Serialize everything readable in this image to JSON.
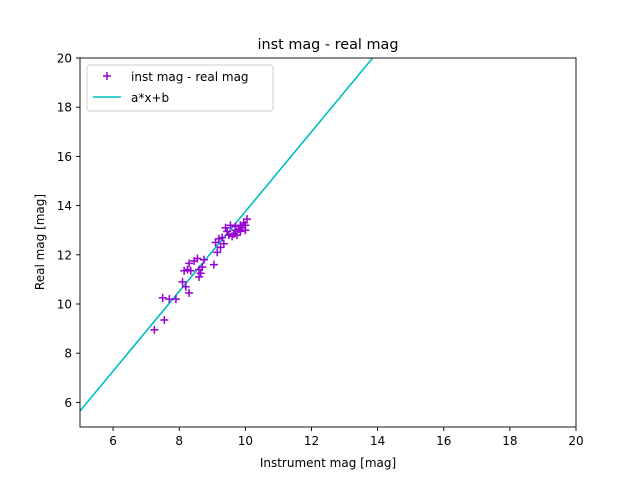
{
  "chart_data": {
    "type": "scatter",
    "title": "inst mag - real mag",
    "xlabel": "Instrument mag [mag]",
    "ylabel": "Real mag [mag]",
    "xlim": [
      5,
      20
    ],
    "ylim": [
      5,
      20
    ],
    "xticks": [
      "6",
      "8",
      "10",
      "12",
      "14",
      "16",
      "18",
      "20"
    ],
    "yticks": [
      "6",
      "8",
      "10",
      "12",
      "14",
      "16",
      "18",
      "20"
    ],
    "grid": false,
    "legend_position": "upper-left",
    "series": [
      {
        "name": "inst mag - real mag",
        "kind": "scatter",
        "marker": "plus",
        "color": "#9400d3",
        "x": [
          7.25,
          7.5,
          7.55,
          7.7,
          7.9,
          8.1,
          8.15,
          8.2,
          8.25,
          8.3,
          8.3,
          8.35,
          8.45,
          8.55,
          8.6,
          8.6,
          8.65,
          8.7,
          8.75,
          9.05,
          9.1,
          9.15,
          9.2,
          9.25,
          9.3,
          9.35,
          9.4,
          9.45,
          9.5,
          9.55,
          9.6,
          9.65,
          9.7,
          9.7,
          9.75,
          9.8,
          9.85,
          9.85,
          9.9,
          9.95,
          10.0,
          10.0,
          10.05
        ],
        "y": [
          8.95,
          10.25,
          9.35,
          10.2,
          10.2,
          10.9,
          11.35,
          10.7,
          11.4,
          10.45,
          11.65,
          11.35,
          11.75,
          11.85,
          11.1,
          11.4,
          11.25,
          11.5,
          11.8,
          11.6,
          12.5,
          12.1,
          12.65,
          12.3,
          12.7,
          12.45,
          13.1,
          12.95,
          12.8,
          13.2,
          12.75,
          12.85,
          13.0,
          13.15,
          12.8,
          13.05,
          13.2,
          12.95,
          13.1,
          13.3,
          13.0,
          13.2,
          13.45
        ]
      },
      {
        "name": "a*x+b",
        "kind": "line",
        "color": "#00bfbf",
        "x": [
          5.0,
          13.85
        ],
        "y": [
          5.65,
          20.0
        ]
      }
    ]
  }
}
